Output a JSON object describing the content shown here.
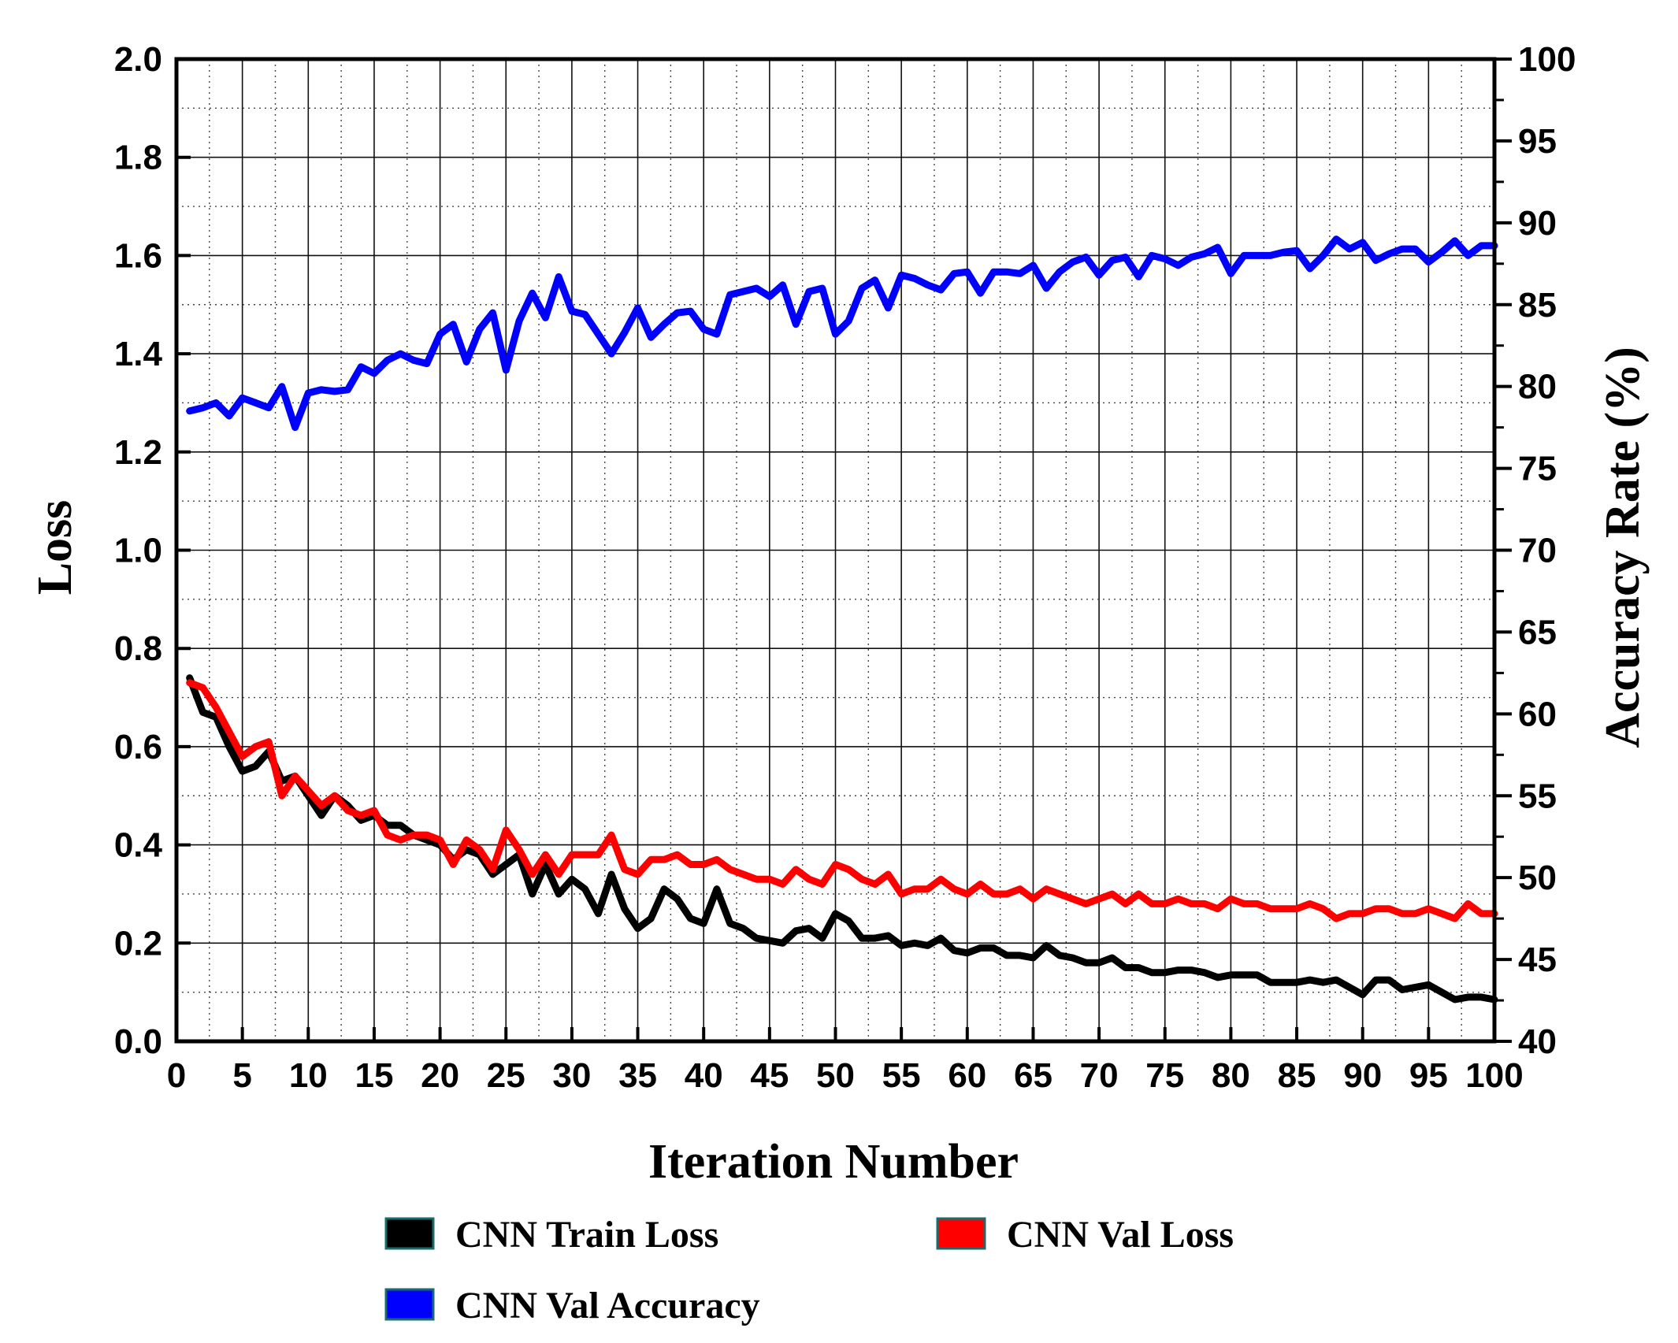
{
  "chart_data": {
    "type": "line",
    "xlabel": "Iteration Number",
    "ylabel_left": "Loss",
    "ylabel_right": "Accuracy Rate (%)",
    "xlim": [
      0,
      100
    ],
    "ylim_left": [
      0.0,
      2.0
    ],
    "ylim_right": [
      40,
      100
    ],
    "grid": true,
    "x_ticks": [
      "0",
      "5",
      "10",
      "15",
      "20",
      "25",
      "30",
      "35",
      "40",
      "45",
      "50",
      "55",
      "60",
      "65",
      "70",
      "75",
      "80",
      "85",
      "90",
      "95",
      "100"
    ],
    "y_left_ticks": [
      "0.0",
      "0.2",
      "0.4",
      "0.6",
      "0.8",
      "1.0",
      "1.2",
      "1.4",
      "1.6",
      "1.8",
      "2.0"
    ],
    "y_right_ticks": [
      "40",
      "45",
      "50",
      "55",
      "60",
      "65",
      "70",
      "75",
      "80",
      "85",
      "90",
      "95",
      "100"
    ],
    "legend_position": "bottom",
    "x": [
      1,
      2,
      3,
      4,
      5,
      6,
      7,
      8,
      9,
      10,
      11,
      12,
      13,
      14,
      15,
      16,
      17,
      18,
      19,
      20,
      21,
      22,
      23,
      24,
      25,
      26,
      27,
      28,
      29,
      30,
      31,
      32,
      33,
      34,
      35,
      36,
      37,
      38,
      39,
      40,
      41,
      42,
      43,
      44,
      45,
      46,
      47,
      48,
      49,
      50,
      51,
      52,
      53,
      54,
      55,
      56,
      57,
      58,
      59,
      60,
      61,
      62,
      63,
      64,
      65,
      66,
      67,
      68,
      69,
      70,
      71,
      72,
      73,
      74,
      75,
      76,
      77,
      78,
      79,
      80,
      81,
      82,
      83,
      84,
      85,
      86,
      87,
      88,
      89,
      90,
      91,
      92,
      93,
      94,
      95,
      96,
      97,
      98,
      99,
      100
    ],
    "series": [
      {
        "name": "CNN Train Loss",
        "axis": "left",
        "color": "#000000",
        "values": [
          0.74,
          0.67,
          0.66,
          0.6,
          0.55,
          0.56,
          0.59,
          0.53,
          0.54,
          0.5,
          0.46,
          0.5,
          0.48,
          0.45,
          0.46,
          0.44,
          0.44,
          0.42,
          0.41,
          0.4,
          0.37,
          0.39,
          0.38,
          0.34,
          0.36,
          0.38,
          0.3,
          0.36,
          0.3,
          0.33,
          0.31,
          0.26,
          0.34,
          0.27,
          0.23,
          0.25,
          0.31,
          0.29,
          0.25,
          0.24,
          0.31,
          0.24,
          0.23,
          0.21,
          0.205,
          0.2,
          0.225,
          0.23,
          0.21,
          0.26,
          0.245,
          0.21,
          0.21,
          0.215,
          0.195,
          0.2,
          0.195,
          0.21,
          0.185,
          0.18,
          0.19,
          0.19,
          0.175,
          0.175,
          0.17,
          0.195,
          0.175,
          0.17,
          0.16,
          0.16,
          0.17,
          0.15,
          0.15,
          0.14,
          0.14,
          0.145,
          0.145,
          0.14,
          0.13,
          0.135,
          0.135,
          0.135,
          0.12,
          0.12,
          0.12,
          0.125,
          0.12,
          0.125,
          0.11,
          0.095,
          0.125,
          0.125,
          0.105,
          0.11,
          0.115,
          0.1,
          0.085,
          0.09,
          0.09,
          0.085
        ]
      },
      {
        "name": "CNN Val Loss",
        "axis": "left",
        "color": "#ff0000",
        "values": [
          0.73,
          0.72,
          0.68,
          0.63,
          0.58,
          0.6,
          0.61,
          0.5,
          0.54,
          0.51,
          0.48,
          0.5,
          0.47,
          0.46,
          0.47,
          0.42,
          0.41,
          0.42,
          0.42,
          0.41,
          0.36,
          0.41,
          0.39,
          0.35,
          0.43,
          0.39,
          0.34,
          0.38,
          0.34,
          0.38,
          0.38,
          0.38,
          0.42,
          0.35,
          0.34,
          0.37,
          0.37,
          0.38,
          0.36,
          0.36,
          0.37,
          0.35,
          0.34,
          0.33,
          0.33,
          0.32,
          0.35,
          0.33,
          0.32,
          0.36,
          0.35,
          0.33,
          0.32,
          0.34,
          0.3,
          0.31,
          0.31,
          0.33,
          0.31,
          0.3,
          0.32,
          0.3,
          0.3,
          0.31,
          0.29,
          0.31,
          0.3,
          0.29,
          0.28,
          0.29,
          0.3,
          0.28,
          0.3,
          0.28,
          0.28,
          0.29,
          0.28,
          0.28,
          0.27,
          0.29,
          0.28,
          0.28,
          0.27,
          0.27,
          0.27,
          0.28,
          0.27,
          0.25,
          0.26,
          0.26,
          0.27,
          0.27,
          0.26,
          0.26,
          0.27,
          0.26,
          0.25,
          0.28,
          0.26,
          0.26
        ]
      },
      {
        "name": "CNN Val Accuracy",
        "axis": "right",
        "color": "#0000ff",
        "values": [
          78.5,
          78.7,
          79.0,
          78.2,
          79.3,
          79.0,
          78.7,
          80.0,
          77.5,
          79.6,
          79.8,
          79.7,
          79.8,
          81.2,
          80.8,
          81.6,
          82.0,
          81.6,
          81.4,
          83.2,
          83.8,
          81.5,
          83.5,
          84.5,
          81.0,
          84.0,
          85.7,
          84.2,
          86.7,
          84.6,
          84.4,
          83.2,
          82.0,
          83.3,
          84.8,
          83.0,
          83.8,
          84.5,
          84.6,
          83.5,
          83.2,
          85.6,
          85.8,
          86.0,
          85.5,
          86.2,
          83.8,
          85.8,
          86.0,
          83.2,
          84.0,
          86.0,
          86.5,
          84.8,
          86.8,
          86.6,
          86.2,
          85.9,
          86.9,
          87.0,
          85.7,
          87.0,
          87.0,
          86.9,
          87.4,
          86.0,
          87.0,
          87.6,
          87.9,
          86.8,
          87.7,
          87.9,
          86.7,
          88.0,
          87.8,
          87.4,
          87.9,
          88.1,
          88.5,
          86.9,
          88.0,
          88.0,
          88.0,
          88.2,
          88.3,
          87.2,
          88.0,
          89.0,
          88.4,
          88.8,
          87.7,
          88.1,
          88.4,
          88.4,
          87.6,
          88.2,
          88.9,
          88.0,
          88.6,
          88.6
        ]
      }
    ]
  }
}
